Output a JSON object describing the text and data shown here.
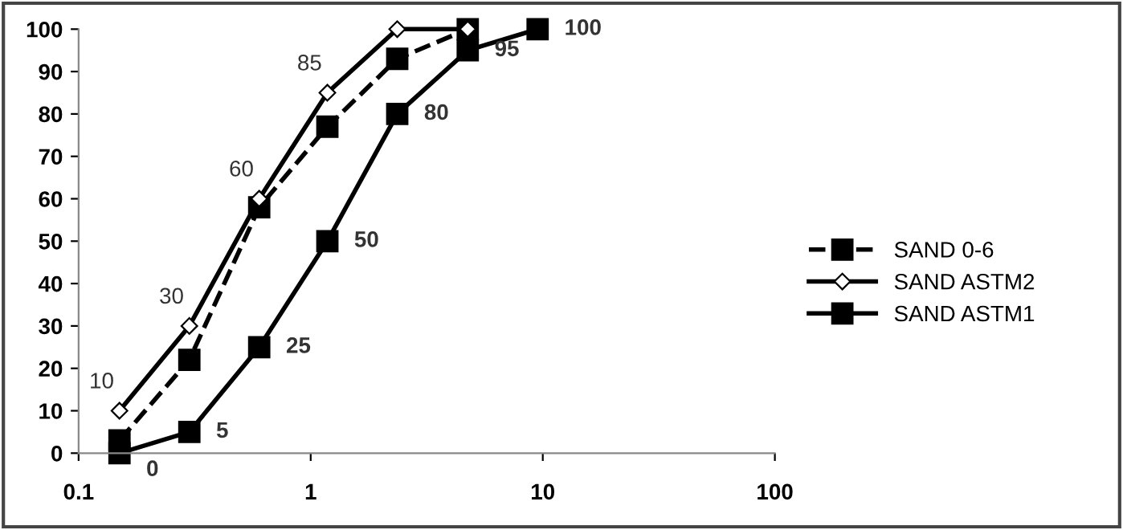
{
  "chart_data": {
    "type": "line",
    "log": "x",
    "xlim": [
      0.1,
      100
    ],
    "xticks": [
      0.1,
      1,
      10,
      100
    ],
    "ylim": [
      0,
      100
    ],
    "yticks": [
      0,
      10,
      20,
      30,
      40,
      50,
      60,
      70,
      80,
      90,
      100
    ],
    "grid": false,
    "legend": "right",
    "series": [
      {
        "name": "SAND 0-6",
        "color": "#000000",
        "line_style": "dashed",
        "marker": "square",
        "x": [
          0.15,
          0.3,
          0.6,
          1.18,
          2.36,
          4.75
        ],
        "values": [
          3,
          22,
          58,
          77,
          93,
          100
        ]
      },
      {
        "name": "SAND ASTM2",
        "color": "#000000",
        "line_style": "solid",
        "marker": "diamond",
        "x": [
          0.15,
          0.3,
          0.6,
          1.18,
          2.36,
          4.75
        ],
        "values": [
          10,
          30,
          60,
          85,
          100,
          100
        ],
        "value_labels": [
          "10",
          "30",
          "60",
          "85",
          null,
          null
        ]
      },
      {
        "name": "SAND ASTM1",
        "color": "#000000",
        "line_style": "solid",
        "marker": "square",
        "x": [
          0.15,
          0.3,
          0.6,
          1.18,
          2.36,
          4.75,
          9.5
        ],
        "values": [
          0,
          5,
          25,
          50,
          80,
          95,
          100
        ],
        "value_labels": [
          "0",
          "5",
          "25",
          "50",
          "80",
          "95",
          "100"
        ]
      }
    ]
  }
}
